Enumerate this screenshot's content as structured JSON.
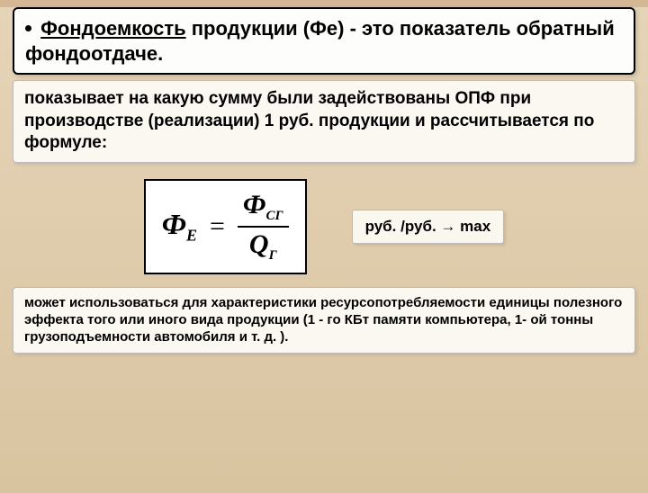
{
  "title": {
    "underlined": "Фондоемкость",
    "rest": " продукции (Фе) - это показатель обратный фондоотдаче."
  },
  "description": "показывает на какую сумму были задействованы ОПФ при производстве (реализации) 1 руб. продукции и рассчитывается по формуле:",
  "formula": {
    "left_main": "Ф",
    "left_sub": "Е",
    "num_main": "Ф",
    "num_sub": "СГ",
    "den_main": "Q",
    "den_sub": "Г"
  },
  "unit": "руб. /руб. → max",
  "note": "может использоваться для характеристики ресурсопотребляемости единицы полезного эффекта того или иного вида продукции (1 - го КБт памяти компьютера, 1- ой тонны грузоподъемности автомобиля и т. д. )."
}
